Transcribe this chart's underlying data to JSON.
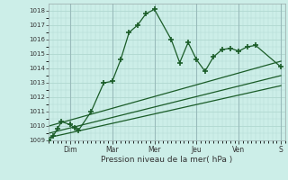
{
  "xlabel": "Pression niveau de la mer( hPa )",
  "bg_color": "#cceee8",
  "grid_color": "#b0d8d0",
  "line_color": "#1a5c28",
  "ylim": [
    1009,
    1018.5
  ],
  "yticks": [
    1009,
    1010,
    1011,
    1012,
    1013,
    1014,
    1015,
    1016,
    1017,
    1018
  ],
  "day_labels": [
    "",
    "Dim",
    "",
    "Mar",
    "",
    "Mer",
    "",
    "Jeu",
    "",
    "Ven",
    "",
    "S"
  ],
  "day_positions": [
    0,
    30,
    60,
    90,
    120,
    150,
    180,
    210,
    240,
    270,
    300,
    330
  ],
  "day_tick_labels": [
    "Dim",
    "Mar",
    "Mer",
    "Jeu",
    "Ven",
    "S"
  ],
  "day_tick_positions": [
    30,
    90,
    150,
    210,
    270,
    330
  ],
  "day_vlines": [
    30,
    90,
    150,
    210,
    270,
    330
  ],
  "xlim": [
    0,
    336
  ],
  "line1_x": [
    0,
    6,
    12,
    18,
    30,
    36,
    42,
    60,
    78,
    90,
    102,
    114,
    126,
    138,
    150,
    174,
    186,
    198,
    210,
    222,
    234,
    246,
    258,
    270,
    282,
    294,
    330
  ],
  "line1_y": [
    1009.0,
    1009.3,
    1009.8,
    1010.3,
    1010.1,
    1009.9,
    1009.7,
    1011.0,
    1013.0,
    1013.1,
    1014.6,
    1016.5,
    1017.0,
    1017.8,
    1018.1,
    1016.0,
    1014.4,
    1015.8,
    1014.6,
    1013.8,
    1014.8,
    1015.3,
    1015.4,
    1015.2,
    1015.5,
    1015.6,
    1014.1
  ],
  "line2_x": [
    0,
    330
  ],
  "line2_y": [
    1010.0,
    1014.5
  ],
  "line3_x": [
    0,
    330
  ],
  "line3_y": [
    1009.5,
    1013.5
  ],
  "line4_x": [
    0,
    330
  ],
  "line4_y": [
    1009.2,
    1012.8
  ]
}
